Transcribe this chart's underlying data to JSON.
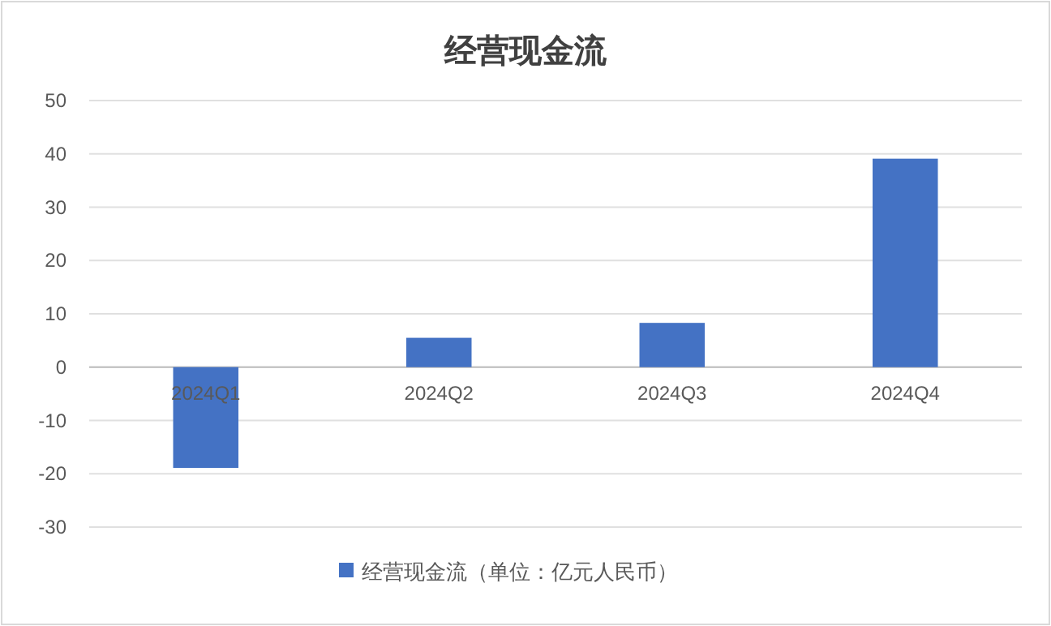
{
  "chart_data": {
    "type": "bar",
    "title": "经营现金流",
    "categories": [
      "2024Q1",
      "2024Q2",
      "2024Q3",
      "2024Q4"
    ],
    "series": [
      {
        "name": "经营现金流（单位：亿元人民币）",
        "color": "#4472c4",
        "values": [
          -18.9,
          5.5,
          8.3,
          39.1
        ]
      }
    ],
    "ylim": [
      -30,
      50
    ],
    "yticks": [
      -30,
      -20,
      -10,
      0,
      10,
      20,
      30,
      40,
      50
    ],
    "grid": "y",
    "legend": "bottom"
  }
}
